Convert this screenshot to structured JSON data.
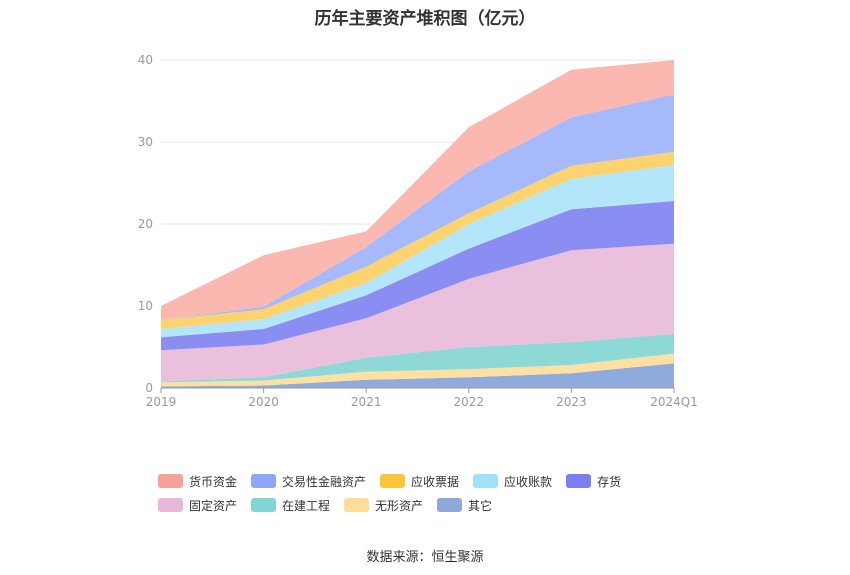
{
  "title": "历年主要资产堆积图（亿元）",
  "source": "数据来源：恒生聚源",
  "chart_data": {
    "type": "area",
    "stacked": true,
    "title": "历年主要资产堆积图（亿元）",
    "categories": [
      "2019",
      "2020",
      "2021",
      "2022",
      "2023",
      "2024Q1"
    ],
    "ylim": [
      0,
      40
    ],
    "yticks": [
      0,
      10,
      20,
      30,
      40
    ],
    "grid": true,
    "legend_position": "bottom",
    "series": [
      {
        "name": "其它",
        "color": "#8faadc",
        "values": [
          0.2,
          0.3,
          1.0,
          1.3,
          1.8,
          3.0
        ]
      },
      {
        "name": "无形资产",
        "color": "#ffe0a3",
        "values": [
          0.5,
          0.6,
          1.0,
          1.0,
          1.0,
          1.2
        ]
      },
      {
        "name": "在建工程",
        "color": "#8ed8d6",
        "values": [
          0.1,
          0.4,
          1.7,
          2.7,
          2.8,
          2.4
        ]
      },
      {
        "name": "固定资产",
        "color": "#ebc0dd",
        "values": [
          3.8,
          4.0,
          4.8,
          8.3,
          11.2,
          11.0
        ]
      },
      {
        "name": "存货",
        "color": "#8a8df2",
        "values": [
          1.6,
          1.9,
          2.8,
          3.7,
          5.0,
          5.2
        ]
      },
      {
        "name": "应收账款",
        "color": "#b3e6fb",
        "values": [
          1.0,
          1.2,
          1.5,
          3.0,
          3.7,
          4.4
        ]
      },
      {
        "name": "应收票据",
        "color": "#fdd36f",
        "values": [
          1.1,
          1.2,
          2.0,
          1.3,
          1.6,
          1.6
        ]
      },
      {
        "name": "交易性金融资产",
        "color": "#a6b9fb",
        "values": [
          0.0,
          0.3,
          2.4,
          5.1,
          5.9,
          7.0
        ]
      },
      {
        "name": "货币资金",
        "color": "#fab8b1",
        "values": [
          1.7,
          6.3,
          1.9,
          5.4,
          5.8,
          4.2
        ]
      }
    ]
  },
  "legend": [
    {
      "name": "货币资金",
      "color": "#f6a29a",
      "icon": "legend-swatch-货币资金"
    },
    {
      "name": "交易性金融资产",
      "color": "#8fa6f8",
      "icon": "legend-swatch-交易性金融资产"
    },
    {
      "name": "应收票据",
      "color": "#fbc53e",
      "icon": "legend-swatch-应收票据"
    },
    {
      "name": "应收账款",
      "color": "#a3dff9",
      "icon": "legend-swatch-应收账款"
    },
    {
      "name": "存货",
      "color": "#7b7ef0",
      "icon": "legend-swatch-存货"
    },
    {
      "name": "固定资产",
      "color": "#e8b8da",
      "icon": "legend-swatch-固定资产"
    },
    {
      "name": "在建工程",
      "color": "#7fd5d3",
      "icon": "legend-swatch-在建工程"
    },
    {
      "name": "无形资产",
      "color": "#ffdc98",
      "icon": "legend-swatch-无形资产"
    },
    {
      "name": "其它",
      "color": "#8eaadb",
      "icon": "legend-swatch-其它"
    }
  ]
}
